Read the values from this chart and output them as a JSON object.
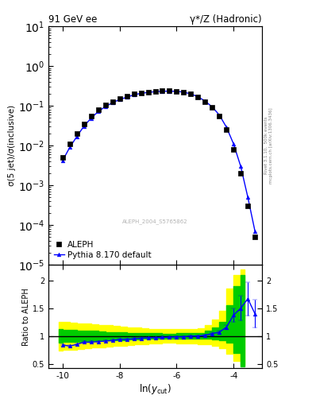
{
  "title_left": "91 GeV ee",
  "title_right": "γ*/Z (Hadronic)",
  "ylabel_main": "σ(5 jet)/σ(inclusive)",
  "ylabel_ratio": "Ratio to ALEPH",
  "xlabel": "ln(y_{cut})",
  "right_label_top": "Rivet 3.1.10,  500k events",
  "right_label_bot": "mcplots.cern.ch [arXiv:1306.3436]",
  "watermark": "ALEPH_2004_S5765862",
  "xlim": [
    -10.5,
    -3.0
  ],
  "main_data_x": [
    -10.0,
    -9.75,
    -9.5,
    -9.25,
    -9.0,
    -8.75,
    -8.5,
    -8.25,
    -8.0,
    -7.75,
    -7.5,
    -7.25,
    -7.0,
    -6.75,
    -6.5,
    -6.25,
    -6.0,
    -5.75,
    -5.5,
    -5.25,
    -5.0,
    -4.75,
    -4.5,
    -4.25,
    -4.0,
    -3.75,
    -3.5,
    -3.25
  ],
  "main_data_y": [
    0.005,
    0.011,
    0.02,
    0.035,
    0.055,
    0.08,
    0.105,
    0.13,
    0.155,
    0.175,
    0.2,
    0.215,
    0.225,
    0.235,
    0.24,
    0.24,
    0.235,
    0.225,
    0.2,
    0.17,
    0.13,
    0.09,
    0.055,
    0.025,
    0.008,
    0.002,
    0.0003,
    5e-05
  ],
  "main_data_yerr": [
    0.0005,
    0.001,
    0.002,
    0.003,
    0.004,
    0.005,
    0.006,
    0.007,
    0.008,
    0.008,
    0.009,
    0.009,
    0.009,
    0.009,
    0.009,
    0.009,
    0.009,
    0.009,
    0.008,
    0.007,
    0.006,
    0.005,
    0.004,
    0.003,
    0.001,
    0.0005,
    8e-05,
    2e-05
  ],
  "mc_x": [
    -10.0,
    -9.75,
    -9.5,
    -9.25,
    -9.0,
    -8.75,
    -8.5,
    -8.25,
    -8.0,
    -7.75,
    -7.5,
    -7.25,
    -7.0,
    -6.75,
    -6.5,
    -6.25,
    -6.0,
    -5.75,
    -5.5,
    -5.25,
    -5.0,
    -4.75,
    -4.5,
    -4.25,
    -4.0,
    -3.75,
    -3.5,
    -3.25
  ],
  "mc_y": [
    0.0042,
    0.009,
    0.017,
    0.031,
    0.049,
    0.072,
    0.096,
    0.12,
    0.145,
    0.165,
    0.19,
    0.207,
    0.218,
    0.228,
    0.234,
    0.235,
    0.232,
    0.222,
    0.2,
    0.17,
    0.132,
    0.094,
    0.059,
    0.029,
    0.011,
    0.003,
    0.0005,
    7e-05
  ],
  "ratio_y": [
    0.84,
    0.82,
    0.85,
    0.89,
    0.89,
    0.9,
    0.91,
    0.92,
    0.94,
    0.94,
    0.95,
    0.96,
    0.97,
    0.97,
    0.975,
    0.98,
    0.987,
    0.987,
    1.0,
    1.0,
    1.015,
    1.044,
    1.07,
    1.16,
    1.375,
    1.5,
    1.67,
    1.4
  ],
  "ratio_yerr": [
    0.02,
    0.015,
    0.015,
    0.015,
    0.015,
    0.015,
    0.015,
    0.015,
    0.015,
    0.015,
    0.015,
    0.015,
    0.015,
    0.015,
    0.015,
    0.015,
    0.015,
    0.015,
    0.015,
    0.015,
    0.015,
    0.02,
    0.025,
    0.04,
    0.12,
    0.22,
    0.3,
    0.25
  ],
  "green_band_x": [
    -10.125,
    -9.875,
    -9.625,
    -9.375,
    -9.125,
    -8.875,
    -8.625,
    -8.375,
    -8.125,
    -7.875,
    -7.625,
    -7.375,
    -7.125,
    -6.875,
    -6.625,
    -6.375,
    -6.125,
    -5.875,
    -5.625,
    -5.375,
    -5.125,
    -4.875,
    -4.625,
    -4.375,
    -4.125,
    -3.875,
    -3.625
  ],
  "green_band_lo": [
    0.88,
    0.89,
    0.89,
    0.9,
    0.9,
    0.91,
    0.92,
    0.93,
    0.93,
    0.93,
    0.94,
    0.94,
    0.95,
    0.95,
    0.95,
    0.96,
    0.96,
    0.95,
    0.95,
    0.95,
    0.95,
    0.95,
    0.94,
    0.92,
    0.88,
    0.7,
    0.45
  ],
  "green_band_hi": [
    1.12,
    1.11,
    1.11,
    1.1,
    1.1,
    1.09,
    1.08,
    1.07,
    1.07,
    1.07,
    1.06,
    1.06,
    1.05,
    1.05,
    1.05,
    1.04,
    1.04,
    1.05,
    1.05,
    1.05,
    1.05,
    1.1,
    1.15,
    1.25,
    1.55,
    1.9,
    2.1
  ],
  "yellow_band_lo": [
    0.74,
    0.75,
    0.76,
    0.77,
    0.78,
    0.79,
    0.8,
    0.81,
    0.82,
    0.83,
    0.84,
    0.85,
    0.86,
    0.87,
    0.87,
    0.88,
    0.88,
    0.87,
    0.87,
    0.87,
    0.86,
    0.85,
    0.83,
    0.78,
    0.68,
    0.55,
    0.48
  ],
  "yellow_band_hi": [
    1.26,
    1.25,
    1.24,
    1.23,
    1.22,
    1.21,
    1.2,
    1.19,
    1.18,
    1.17,
    1.16,
    1.15,
    1.14,
    1.13,
    1.13,
    1.12,
    1.12,
    1.13,
    1.13,
    1.13,
    1.14,
    1.2,
    1.3,
    1.45,
    1.85,
    2.1,
    2.2
  ],
  "data_color": "black",
  "mc_color": "blue",
  "green_color": "#00cc00",
  "yellow_color": "#ffff00",
  "legend_entries": [
    "ALEPH",
    "Pythia 8.170 default"
  ]
}
